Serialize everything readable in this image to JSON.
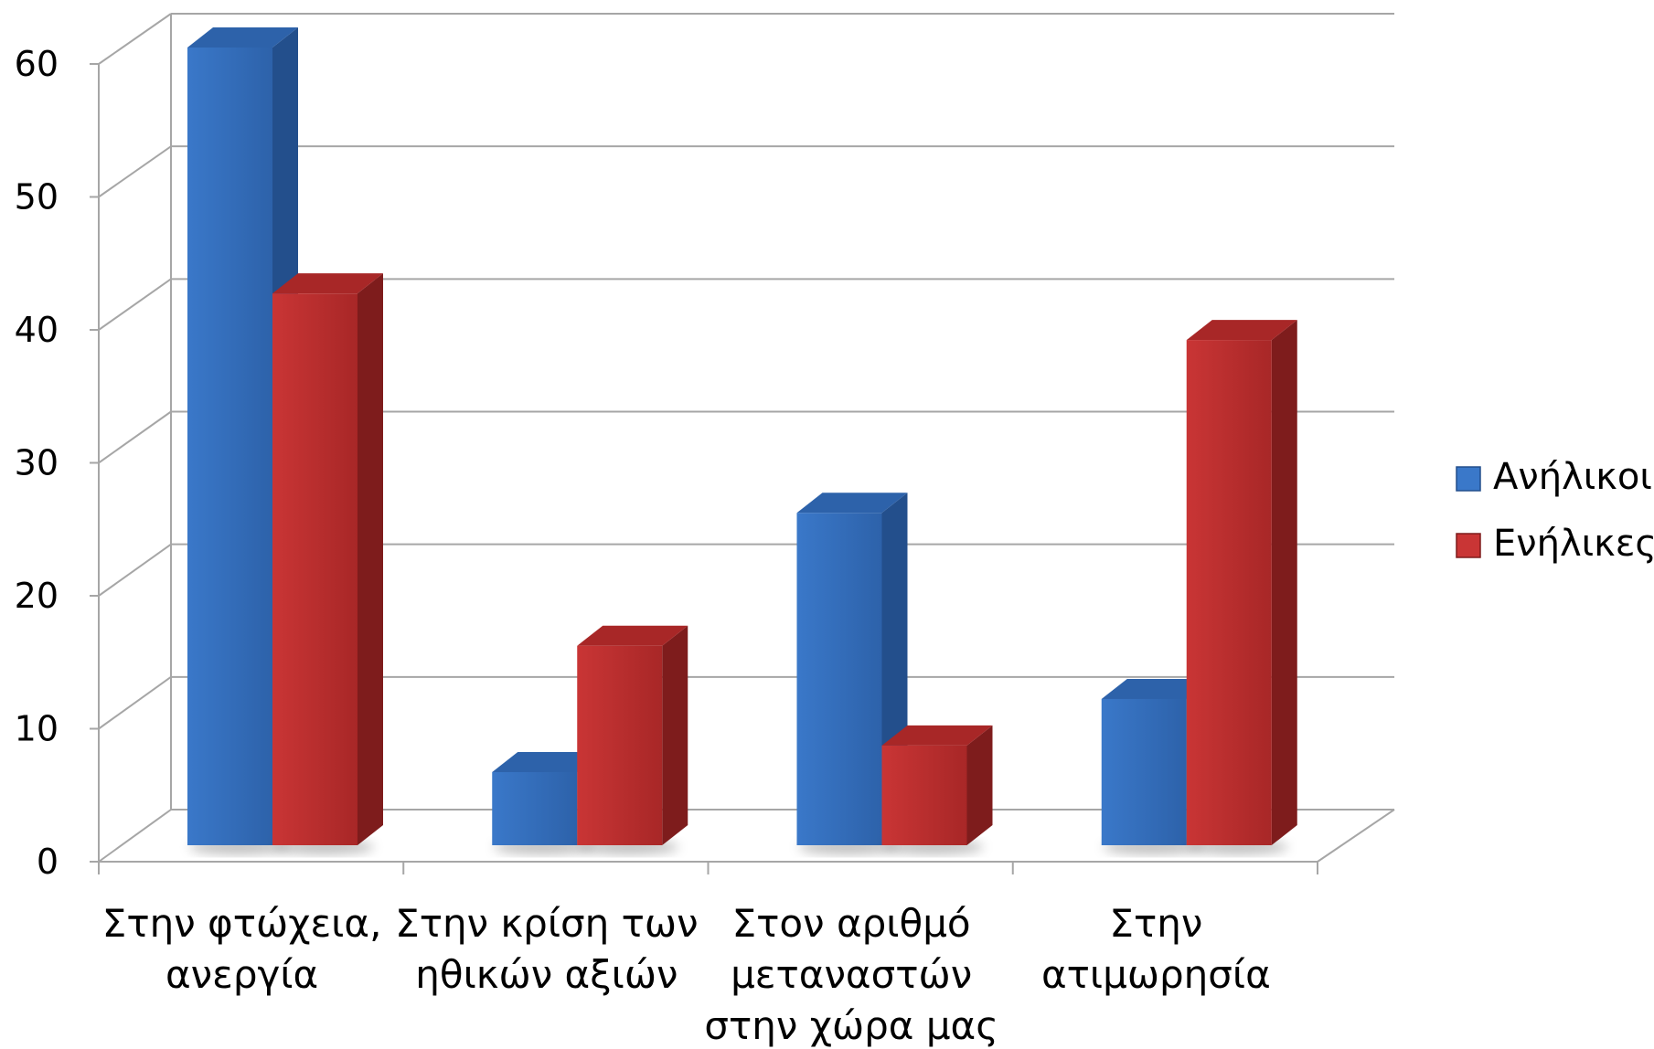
{
  "chart_data": {
    "type": "bar",
    "style": "3d-clustered-column",
    "categories": [
      [
        "Στην φτώχεια,",
        "ανεργία"
      ],
      [
        "Στην κρίση των",
        "ηθικών αξιών"
      ],
      [
        "Στον αριθμό",
        "μεταναστών",
        "στην χώρα μας"
      ],
      [
        "Στην",
        "ατιμωρησία"
      ]
    ],
    "series": [
      {
        "name": "Ανήλικοι",
        "values": [
          60,
          5.5,
          25,
          11
        ],
        "color": "#3a78c9",
        "side_color": "#234f8c",
        "top_color": "#2d62aa"
      },
      {
        "name": "Ενήλικες",
        "values": [
          41.5,
          15,
          7.5,
          38
        ],
        "color": "#c93535",
        "side_color": "#7e1c1c",
        "top_color": "#a82727"
      }
    ],
    "ylim": [
      0,
      60
    ],
    "yticks": [
      "0",
      "10",
      "20",
      "30",
      "40",
      "50",
      "60"
    ],
    "grid": true,
    "legend": "right",
    "title": "",
    "xlabel": "",
    "ylabel": ""
  }
}
